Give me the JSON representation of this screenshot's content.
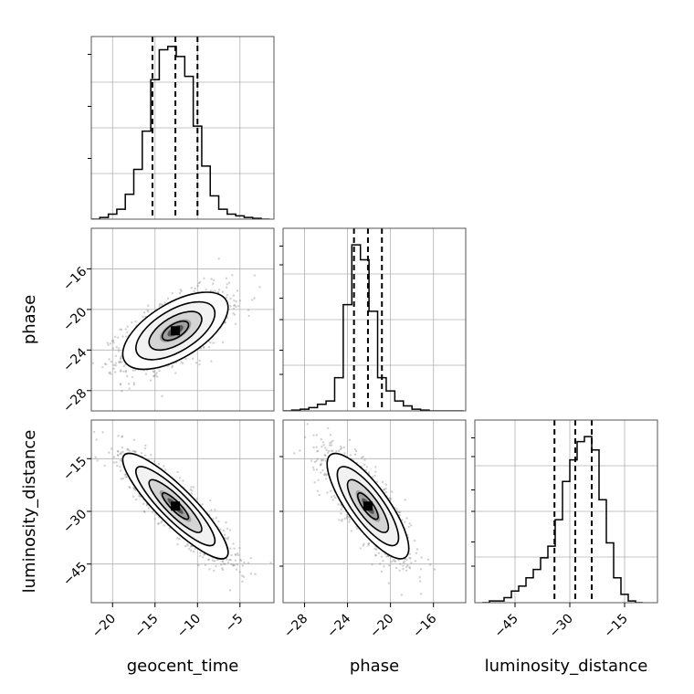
{
  "chart_data": {
    "type": "corner",
    "parameters": [
      "geocent_time",
      "phase",
      "luminosity_distance"
    ],
    "grid": true,
    "diagonal_histograms": [
      {
        "parameter": "geocent_time",
        "range": [
          -22.5,
          -1
        ],
        "ylim": [
          0,
          1.1
        ],
        "ticks": [
          -20,
          -15,
          -10,
          -5
        ],
        "bin_edges": [
          -22.5,
          -21.5,
          -20.5,
          -19.5,
          -18.5,
          -17.5,
          -16.5,
          -15.5,
          -14.5,
          -13.5,
          -12.5,
          -11.5,
          -10.5,
          -9.5,
          -8.5,
          -7.5,
          -6.5,
          -5.5,
          -4.5,
          -3.5,
          -2.5,
          -1.5
        ],
        "counts": [
          0.0,
          0.01,
          0.03,
          0.06,
          0.15,
          0.3,
          0.53,
          0.84,
          1.02,
          1.04,
          0.98,
          0.86,
          0.56,
          0.32,
          0.14,
          0.06,
          0.03,
          0.02,
          0.01,
          0.005,
          0.0
        ],
        "quantiles": [
          -15.3,
          -12.6,
          -10.0
        ]
      },
      {
        "parameter": "phase",
        "range": [
          -30,
          -13
        ],
        "ylim": [
          0,
          1.1
        ],
        "ticks": [
          -28,
          -24,
          -20,
          -16
        ],
        "bin_edges": [
          -30,
          -29.2,
          -28.4,
          -27.6,
          -26.8,
          -26.0,
          -25.2,
          -24.4,
          -23.6,
          -22.8,
          -22.0,
          -21.2,
          -20.4,
          -19.6,
          -18.8,
          -18.0,
          -17.2,
          -16.4,
          -15.6,
          -14.8,
          -14.0,
          -13.2
        ],
        "counts": [
          0.0,
          0.005,
          0.01,
          0.02,
          0.04,
          0.06,
          0.2,
          0.64,
          1.0,
          0.91,
          0.6,
          0.2,
          0.12,
          0.06,
          0.03,
          0.01,
          0.005,
          0.0,
          0.0,
          0.0,
          0.0
        ],
        "quantiles": [
          -23.4,
          -22.1,
          -20.8
        ]
      },
      {
        "parameter": "luminosity_distance",
        "range": [
          -56,
          -6
        ],
        "ylim": [
          0,
          1.1
        ],
        "ticks": [
          -45,
          -30,
          -15
        ],
        "bin_edges": [
          -54,
          -52,
          -50,
          -48,
          -46,
          -44,
          -42,
          -40,
          -38,
          -36,
          -34,
          -32,
          -30,
          -28,
          -26,
          -24,
          -22,
          -20,
          -18,
          -16,
          -14,
          -12,
          -10
        ],
        "counts": [
          0.0,
          0.01,
          0.01,
          0.03,
          0.07,
          0.1,
          0.15,
          0.2,
          0.27,
          0.34,
          0.5,
          0.73,
          0.86,
          0.97,
          1.0,
          0.92,
          0.62,
          0.36,
          0.15,
          0.05,
          0.01,
          0.0
        ],
        "quantiles": [
          -34.2,
          -28.5,
          -24.0
        ]
      }
    ],
    "off_diagonal": [
      {
        "x": "geocent_time",
        "y": "phase",
        "xrange": [
          -22.5,
          -1
        ],
        "yrange": [
          -30,
          -12
        ],
        "xticks": [
          -20,
          -15,
          -10,
          -5
        ],
        "yticks": [
          -16,
          -20,
          -24,
          -28
        ],
        "correlation": "positive",
        "mean": [
          -12.6,
          -22.1
        ],
        "sd": [
          3.1,
          1.9
        ],
        "rho": 0.6
      },
      {
        "x": "geocent_time",
        "y": "luminosity_distance",
        "xrange": [
          -22.5,
          -1
        ],
        "yrange": [
          -56,
          -4
        ],
        "xticks": [
          -20,
          -15,
          -10,
          -5
        ],
        "yticks": [
          -15,
          -30,
          -45
        ],
        "correlation": "negative",
        "mean": [
          -12.6,
          -28.5
        ],
        "sd": [
          3.1,
          7.5
        ],
        "rho": -0.88
      },
      {
        "x": "phase",
        "y": "luminosity_distance",
        "xrange": [
          -30,
          -13
        ],
        "yrange": [
          -56,
          -4
        ],
        "xticks": [
          -28,
          -24,
          -20,
          -16
        ],
        "yticks": [
          -15,
          -30,
          -45
        ],
        "correlation": "negative",
        "mean": [
          -22.1,
          -28.5
        ],
        "sd": [
          1.9,
          7.5
        ],
        "rho": -0.8
      }
    ],
    "xlabels": [
      "geocent_time",
      "phase",
      "luminosity_distance"
    ],
    "ylabels": [
      "",
      "phase",
      "luminosity_distance"
    ]
  }
}
